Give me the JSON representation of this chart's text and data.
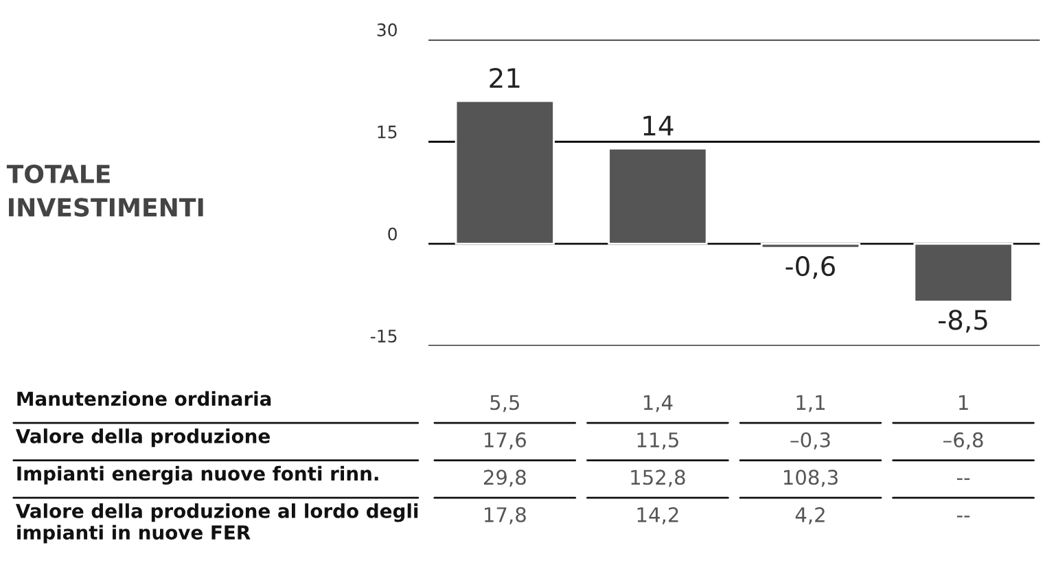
{
  "chart_data": [
    {
      "type": "bar",
      "ylabel": "TOTALE INVESTIMENTI",
      "categories": [
        null,
        null,
        null,
        null
      ],
      "values": [
        21,
        14,
        -0.6,
        -8.5
      ],
      "color": "#555555",
      "value_labels": [
        "21",
        "14",
        "-0,6",
        "-8,5"
      ],
      "ylim": [
        -15,
        30
      ],
      "yticks": [
        -15,
        0,
        15,
        30
      ],
      "grid": "y"
    },
    {
      "type": "other",
      "y_categories": [
        "Manutenzione ordinaria",
        "Valore della produzione",
        "Impianti energia nuove fonti rinn.",
        "Valore della produzione al lordo degli impianti in nuove FER"
      ],
      "cell_labels": [
        [
          "5,5",
          "1,4",
          "1,1",
          "1"
        ],
        [
          "17,6",
          "11,5",
          "–0,3",
          "–6,8"
        ],
        [
          "29,8",
          "152,8",
          "108,3",
          "--"
        ],
        [
          "17,8",
          "14,2",
          "4,2",
          "--"
        ]
      ]
    }
  ]
}
